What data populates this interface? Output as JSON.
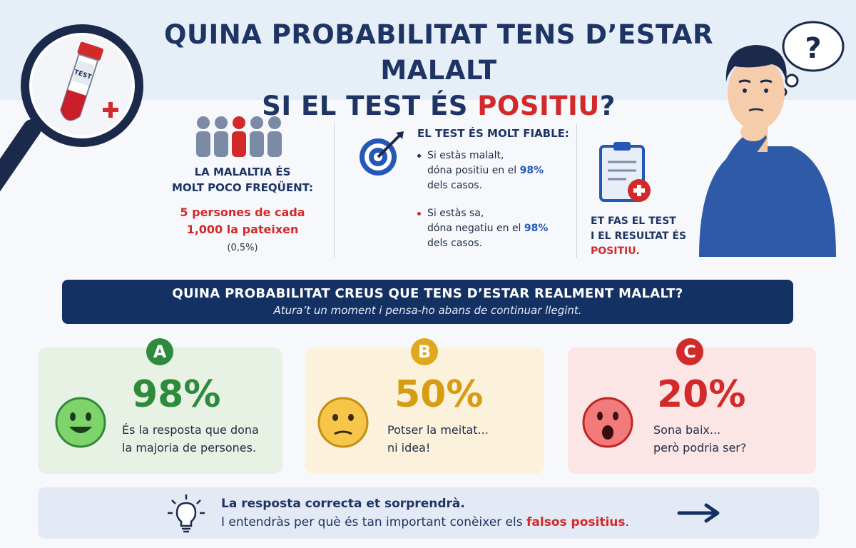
{
  "title": {
    "line1": "QUINA PROBABILITAT TENS D’ESTAR MALALT",
    "line2_prefix": "SI EL TEST ÉS ",
    "line2_highlight": "POSITIU",
    "line2_suffix": "?"
  },
  "illustration": {
    "tube_label": "TEST",
    "thought_mark": "?"
  },
  "info": {
    "col1": {
      "heading_line1": "LA MALALTIA ÉS",
      "heading_line2": "MOLT POCO FREQÜENT:",
      "stat_line1": "5 persones de cada",
      "stat_line2": "1,000 la pateixen",
      "percent": "(0,5%)"
    },
    "col2": {
      "heading": "EL TEST ÉS MOLT FIABLE:",
      "bullet1_line1": "Si estàs malalt,",
      "bullet1_line2_prefix": "dóna positiu en el ",
      "bullet1_value": "98%",
      "bullet1_line3": "dels casos.",
      "bullet2_line1": "Si estàs sa,",
      "bullet2_line2_prefix": "dóna negatiu en el ",
      "bullet2_value": "98%",
      "bullet2_line3": "dels casos."
    },
    "col3": {
      "line1": "ET FAS EL TEST",
      "line2": "I EL RESULTAT ÉS",
      "line3": "POSITIU."
    }
  },
  "banner": {
    "question": "QUINA PROBABILITAT CREUS QUE TENS D’ESTAR REALMENT MALALT?",
    "subtitle": "Atura’t un moment i pensa-ho abans de continuar llegint."
  },
  "options": [
    {
      "letter": "A",
      "value": "98%",
      "line1": "És la resposta que dona",
      "line2": "la majoria de persones.",
      "color": "#2e8b3c",
      "face": "happy-face-icon"
    },
    {
      "letter": "B",
      "value": "50%",
      "line1": "Potser la meitat...",
      "line2": "ni idea!",
      "color": "#e0a81d",
      "face": "neutral-face-icon"
    },
    {
      "letter": "C",
      "value": "20%",
      "line1": "Sona baix...",
      "line2": "però podria ser?",
      "color": "#d22a2a",
      "face": "surprised-face-icon"
    }
  ],
  "footer": {
    "line1": "La resposta correcta et sorprendrà.",
    "line2_prefix": "I entendràs per què és tan important conèixer els ",
    "line2_highlight": "falsos positius",
    "line2_suffix": "."
  },
  "colors": {
    "navy": "#143164",
    "red": "#d22a2a",
    "blue": "#2458b8",
    "green": "#2e8b3c",
    "yellow": "#e0a81d"
  }
}
